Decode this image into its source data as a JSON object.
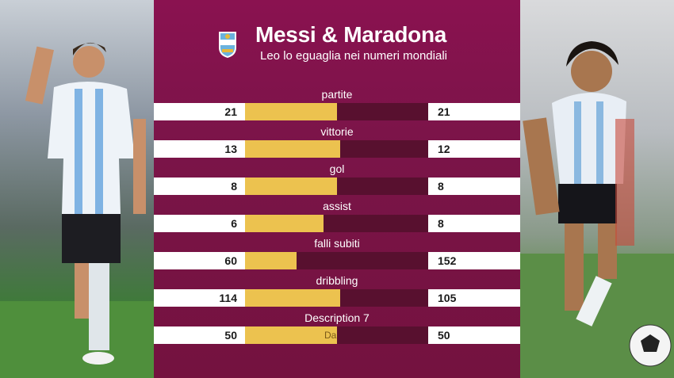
{
  "header": {
    "title": "Messi & Maradona",
    "subtitle": "Leo lo eguaglia nei numeri mondiali",
    "logo_icon": "afa-crest-icon"
  },
  "colors": {
    "panel": "#7a1448",
    "track": "#58102f",
    "fill": "#ecc24f",
    "value_box": "#ffffff"
  },
  "chart_data": {
    "type": "bar",
    "categories": [
      "partite",
      "vittorie",
      "gol",
      "assist",
      "falli subiti",
      "dribbling",
      "Description 7"
    ],
    "series": [
      {
        "values": [
          21,
          13,
          8,
          6,
          60,
          114,
          50
        ]
      },
      {
        "values": [
          21,
          12,
          8,
          8,
          152,
          105,
          50
        ]
      }
    ],
    "left_display": [
      "21",
      "13",
      "8",
      "6",
      "60",
      "114",
      "50"
    ],
    "right_display": [
      "21",
      "12",
      "8",
      "8",
      "152",
      "105",
      "50"
    ],
    "annotations": {
      "last_bar_text": "Da"
    }
  }
}
